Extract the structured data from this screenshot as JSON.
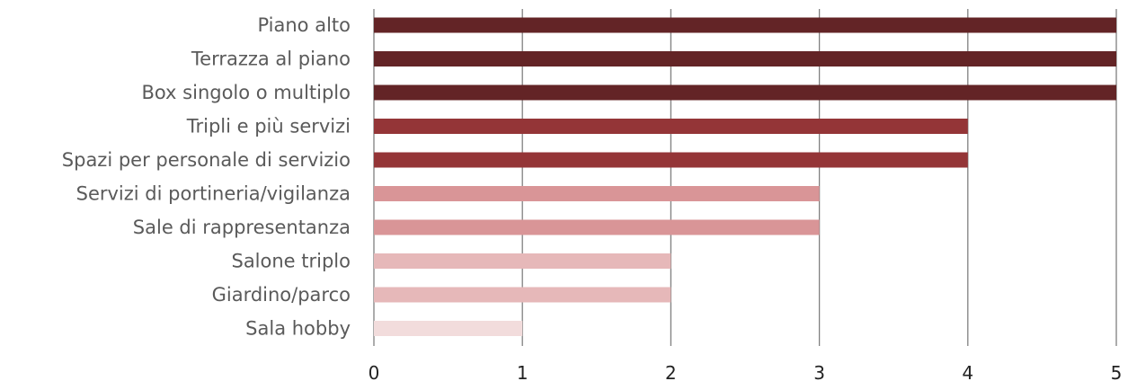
{
  "chart_data": {
    "type": "bar",
    "orientation": "horizontal",
    "categories": [
      "Piano alto",
      "Terrazza al piano",
      "Box singolo o multiplo",
      "Tripli e più servizi",
      "Spazi per personale di servizio",
      "Servizi di portineria/vigilanza",
      "Sale di rappresentanza",
      "Salone triplo",
      "Giardino/parco",
      "Sala hobby"
    ],
    "values": [
      5,
      5,
      5,
      4,
      4,
      3,
      3,
      2,
      2,
      1
    ],
    "colors": [
      "#632426",
      "#632426",
      "#632426",
      "#943537",
      "#943537",
      "#d99597",
      "#d99597",
      "#e6b8b9",
      "#e6b8b9",
      "#f2dcdc"
    ],
    "xlim": [
      0,
      5
    ],
    "xticks": [
      "0",
      "1",
      "2",
      "3",
      "4",
      "5"
    ],
    "title": "",
    "xlabel": "",
    "ylabel": "",
    "grid": "vertical",
    "legend": "none"
  }
}
